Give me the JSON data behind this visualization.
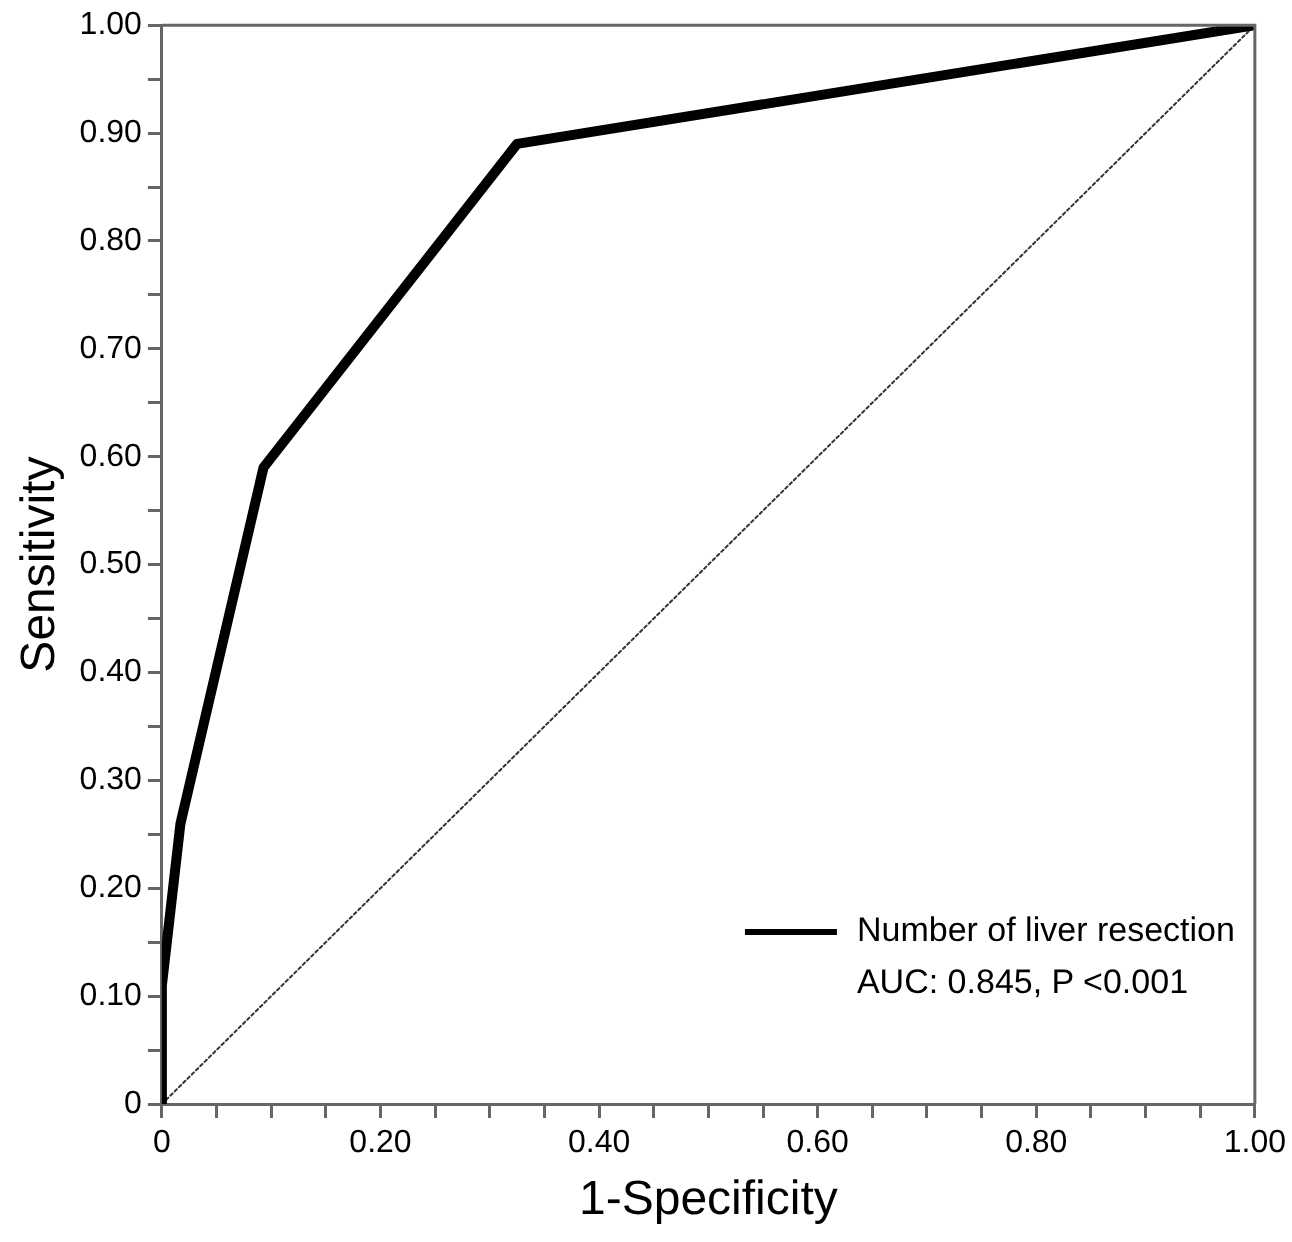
{
  "chart_data": {
    "type": "line",
    "xlabel": "1-Specificity",
    "ylabel": "Sensitivity",
    "xlim": [
      0,
      1
    ],
    "ylim": [
      0,
      1
    ],
    "xticks": [
      0,
      {
        "value": 0.05,
        "label": null
      },
      {
        "value": 0.1,
        "label": null
      },
      {
        "value": 0.15,
        "label": null
      },
      {
        "value": 0.2,
        "label": "0.20"
      },
      {
        "value": 0.25,
        "label": null
      },
      {
        "value": 0.3,
        "label": null
      },
      {
        "value": 0.35,
        "label": null
      },
      {
        "value": 0.4,
        "label": "0.40"
      },
      {
        "value": 0.45,
        "label": null
      },
      {
        "value": 0.5,
        "label": null
      },
      {
        "value": 0.55,
        "label": null
      },
      {
        "value": 0.6,
        "label": "0.60"
      },
      {
        "value": 0.65,
        "label": null
      },
      {
        "value": 0.7,
        "label": null
      },
      {
        "value": 0.75,
        "label": null
      },
      {
        "value": 0.8,
        "label": "0.80"
      },
      {
        "value": 0.85,
        "label": null
      },
      {
        "value": 0.9,
        "label": null
      },
      {
        "value": 0.95,
        "label": null
      },
      {
        "value": 1,
        "label": "1.00"
      }
    ],
    "yticks": [
      0,
      {
        "value": 0.05,
        "label": null
      },
      {
        "value": 0.1,
        "label": "0.10"
      },
      {
        "value": 0.15,
        "label": null
      },
      {
        "value": 0.2,
        "label": "0.20"
      },
      {
        "value": 0.25,
        "label": null
      },
      {
        "value": 0.3,
        "label": "0.30"
      },
      {
        "value": 0.35,
        "label": null
      },
      {
        "value": 0.4,
        "label": "0.40"
      },
      {
        "value": 0.45,
        "label": null
      },
      {
        "value": 0.5,
        "label": "0.50"
      },
      {
        "value": 0.55,
        "label": null
      },
      {
        "value": 0.6,
        "label": "0.60"
      },
      {
        "value": 0.65,
        "label": null
      },
      {
        "value": 0.7,
        "label": "0.70"
      },
      {
        "value": 0.75,
        "label": null
      },
      {
        "value": 0.8,
        "label": "0.80"
      },
      {
        "value": 0.85,
        "label": null
      },
      {
        "value": 0.9,
        "label": "0.90"
      },
      {
        "value": 0.95,
        "label": null
      },
      {
        "value": 1,
        "label": "1.00"
      }
    ],
    "grid": false,
    "legend": "bottom right",
    "marker": "none",
    "series": [
      {
        "name": "Number of liver resection",
        "color": "#000000",
        "line_style": "solid",
        "x": [
          0,
          0,
          0.017,
          0.093,
          0.325,
          1
        ],
        "values": [
          0,
          0.11,
          0.26,
          0.59,
          0.89,
          1
        ]
      },
      {
        "color": "#333333",
        "line_style": "dotted",
        "x": [
          0,
          1
        ],
        "values": [
          0,
          1
        ]
      }
    ],
    "annotations": [
      "AUC: 0.845, P <0.001"
    ]
  }
}
